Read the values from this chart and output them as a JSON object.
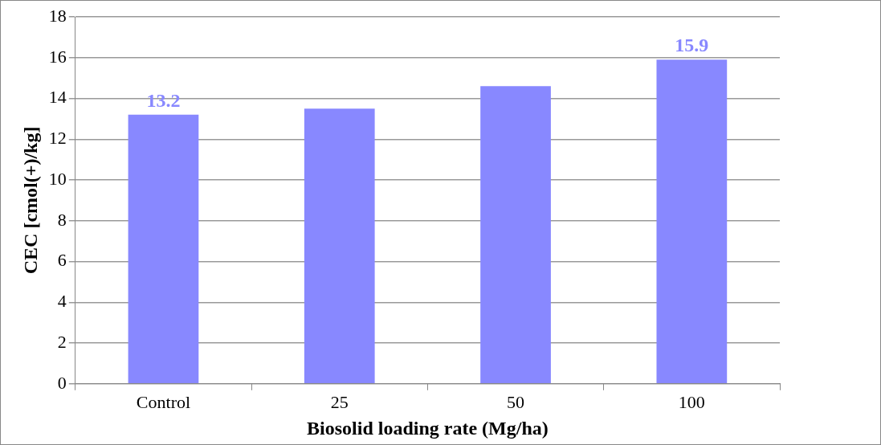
{
  "chart_data": {
    "type": "bar",
    "xlabel": "Biosolid loading rate (Mg/ha)",
    "ylabel": "CEC [cmol(+)/kg]",
    "categories": [
      "Control",
      "25",
      "50",
      "100"
    ],
    "values": [
      13.2,
      13.5,
      14.6,
      15.9
    ],
    "value_labels": [
      "13.2",
      null,
      null,
      "15.9"
    ],
    "color": "#8888ff",
    "ylim": [
      0,
      18
    ],
    "yticks": [
      0,
      2,
      4,
      6,
      8,
      10,
      12,
      14,
      16,
      18
    ],
    "grid": "y",
    "legend": false
  }
}
